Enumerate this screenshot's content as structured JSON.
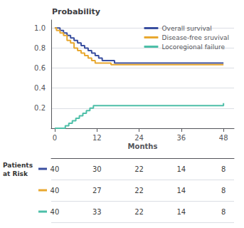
{
  "chart_data": {
    "type": "step",
    "title": "Probability",
    "x_label": "Months",
    "xlim": [
      -1,
      51
    ],
    "xticks": [
      0,
      12,
      24,
      36,
      48
    ],
    "ylim": [
      0.0,
      1.08
    ],
    "yticks": [
      0.2,
      0.4,
      0.6,
      0.8,
      {
        "value": 1.0,
        "label": "1.0"
      }
    ],
    "grid": "y",
    "legend": "upper right",
    "series": [
      {
        "name": "Overall survival",
        "color": "#3a4fa0",
        "x": [
          0,
          1,
          1.5,
          2,
          2.5,
          3,
          3.5,
          4,
          4.5,
          5,
          5.5,
          6,
          6.5,
          7,
          7.5,
          8,
          8.5,
          9,
          9.5,
          10,
          10.5,
          11,
          11.5,
          12,
          12.5,
          13,
          13.5,
          14,
          17,
          48
        ],
        "values": [
          1.0,
          1.0,
          0.975,
          0.975,
          0.95,
          0.95,
          0.925,
          0.925,
          0.9,
          0.9,
          0.875,
          0.875,
          0.85,
          0.85,
          0.825,
          0.825,
          0.8,
          0.8,
          0.775,
          0.775,
          0.75,
          0.75,
          0.725,
          0.725,
          0.7,
          0.7,
          0.675,
          0.675,
          0.65,
          0.65
        ],
        "at_risk": [
          40,
          30,
          22,
          14,
          8
        ]
      },
      {
        "name": "Disease-free sruvival",
        "color": "#e8a830",
        "x": [
          0,
          0.5,
          1,
          1.5,
          2,
          2.5,
          3,
          3.5,
          4,
          4.5,
          5,
          5.5,
          6,
          6.5,
          7,
          7.5,
          8,
          8.5,
          9,
          9.5,
          10,
          10.5,
          11,
          11.5,
          16,
          48
        ],
        "values": [
          1.0,
          0.975,
          0.975,
          0.95,
          0.95,
          0.925,
          0.925,
          0.875,
          0.875,
          0.85,
          0.85,
          0.8,
          0.8,
          0.775,
          0.775,
          0.75,
          0.75,
          0.725,
          0.725,
          0.7,
          0.7,
          0.675,
          0.675,
          0.65,
          0.635,
          0.635
        ],
        "at_risk": [
          40,
          27,
          22,
          14,
          8
        ]
      },
      {
        "name": "Locoregional failure",
        "color": "#4dbfa8",
        "x": [
          0,
          2,
          3,
          4,
          5,
          6,
          7,
          8,
          9,
          10,
          11,
          14,
          48
        ],
        "values": [
          0.0,
          0.0,
          0.025,
          0.05,
          0.075,
          0.1,
          0.125,
          0.15,
          0.175,
          0.2,
          0.225,
          0.225,
          0.25
        ],
        "at_risk": [
          40,
          33,
          22,
          14,
          8
        ]
      }
    ],
    "at_risk_label": "Patients\nat Risk",
    "at_risk_times": [
      0,
      12,
      24,
      36,
      48
    ]
  }
}
